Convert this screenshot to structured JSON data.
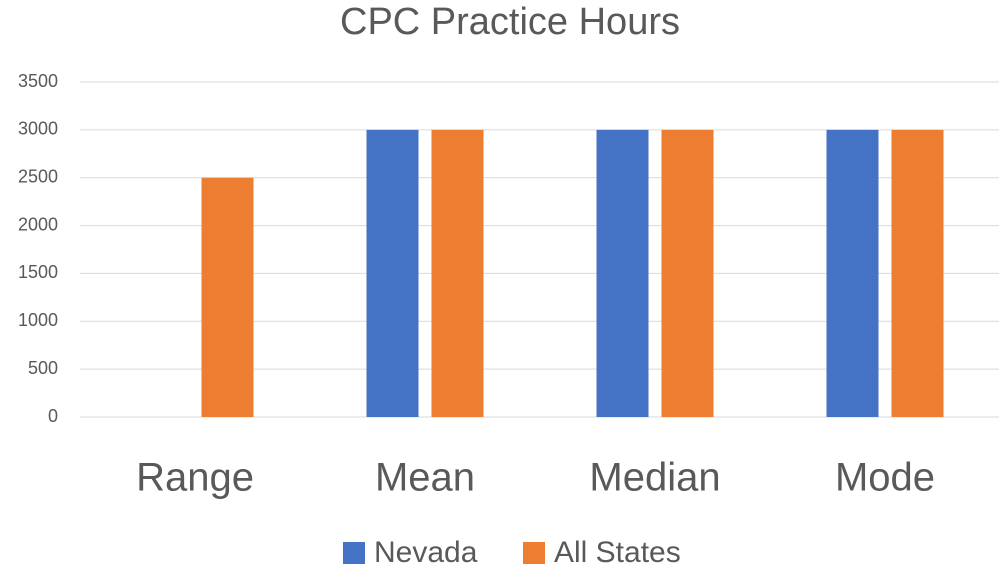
{
  "chart_data": {
    "type": "bar",
    "title": "CPC Practice Hours",
    "categories": [
      "Range",
      "Mean",
      "Median",
      "Mode"
    ],
    "series": [
      {
        "name": "Nevada",
        "color": "#4472c4",
        "values": [
          0,
          3000,
          3000,
          3000
        ]
      },
      {
        "name": "All States",
        "color": "#ed7d31",
        "values": [
          2500,
          3000,
          3000,
          3000
        ]
      }
    ],
    "ylim": [
      0,
      3500
    ],
    "yticks": [
      0,
      500,
      1000,
      1500,
      2000,
      2500,
      3000,
      3500
    ],
    "grid": true,
    "legend": "bottom"
  }
}
